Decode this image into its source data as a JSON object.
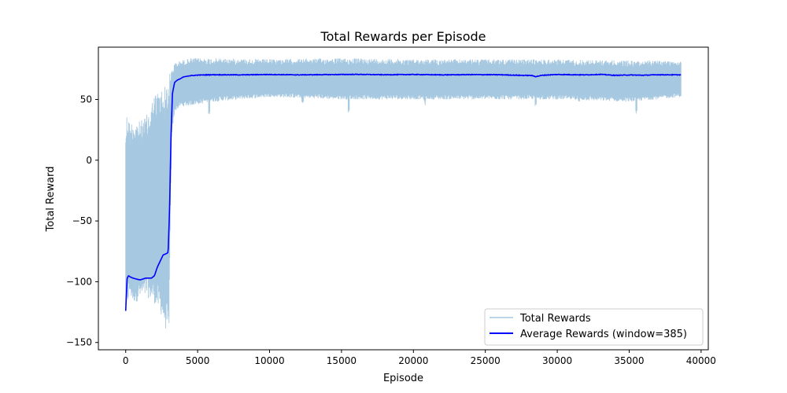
{
  "chart_data": {
    "type": "line",
    "title": "Total Rewards per Episode",
    "xlabel": "Episode",
    "ylabel": "Total Reward",
    "xlim": [
      -1900,
      40500
    ],
    "ylim": [
      -156,
      93
    ],
    "xticks": [
      0,
      5000,
      10000,
      15000,
      20000,
      25000,
      30000,
      35000,
      40000
    ],
    "xtick_labels": [
      "0",
      "5000",
      "10000",
      "15000",
      "20000",
      "25000",
      "30000",
      "35000",
      "40000"
    ],
    "yticks": [
      50,
      0,
      -50,
      -100,
      -150
    ],
    "ytick_labels": [
      "50",
      "0",
      "−50",
      "−100",
      "−150"
    ],
    "grid": false,
    "legend_position": "lower-right",
    "series": [
      {
        "name": "Total Rewards",
        "color": "#a6c8e0",
        "style": "noisy-band",
        "envelope": {
          "x": [
            0,
            100,
            300,
            500,
            1000,
            1500,
            2000,
            2500,
            2800,
            3000,
            3200,
            3400,
            3800,
            4500,
            6000,
            10000,
            15000,
            20000,
            25000,
            30000,
            35000,
            38600
          ],
          "lower": [
            -125,
            -120,
            -112,
            -118,
            -115,
            -113,
            -118,
            -128,
            -140,
            -145,
            20,
            40,
            44,
            45,
            48,
            52,
            50,
            50,
            50,
            50,
            48,
            52
          ],
          "upper": [
            30,
            42,
            30,
            35,
            32,
            38,
            55,
            60,
            62,
            70,
            75,
            80,
            82,
            84,
            84,
            83,
            84,
            83,
            83,
            83,
            82,
            82
          ],
          "dips": [
            [
              15500,
              38
            ],
            [
              20800,
              45
            ],
            [
              28500,
              43
            ],
            [
              35500,
              35
            ],
            [
              5800,
              38
            ],
            [
              31500,
              47
            ],
            [
              12300,
              45
            ]
          ]
        }
      },
      {
        "name": "Average Rewards (window=385)",
        "color": "#0000ff",
        "x": [
          0,
          50,
          100,
          200,
          300,
          500,
          800,
          1000,
          1400,
          1800,
          2000,
          2200,
          2400,
          2600,
          2800,
          2950,
          3050,
          3150,
          3250,
          3400,
          3600,
          3800,
          4000,
          4500,
          5000,
          6000,
          8000,
          10000,
          12000,
          14000,
          16000,
          18000,
          20000,
          22000,
          24000,
          26000,
          27500,
          28200,
          28500,
          29000,
          30000,
          32000,
          33000,
          34000,
          35000,
          36000,
          37000,
          38600
        ],
        "y": [
          -124,
          -110,
          -97,
          -95,
          -96,
          -97,
          -98,
          -98.5,
          -97,
          -97,
          -95,
          -88,
          -83,
          -78,
          -77,
          -76,
          -40,
          20,
          55,
          64,
          66,
          67,
          68.5,
          69.5,
          70,
          70.3,
          70.2,
          70.5,
          70.2,
          70.4,
          70.6,
          70.3,
          70.5,
          70.2,
          70.4,
          70.3,
          69.8,
          69.7,
          68.8,
          69.9,
          70.5,
          70.2,
          70.6,
          69.8,
          70.1,
          69.9,
          70.3,
          70.2
        ]
      }
    ]
  }
}
